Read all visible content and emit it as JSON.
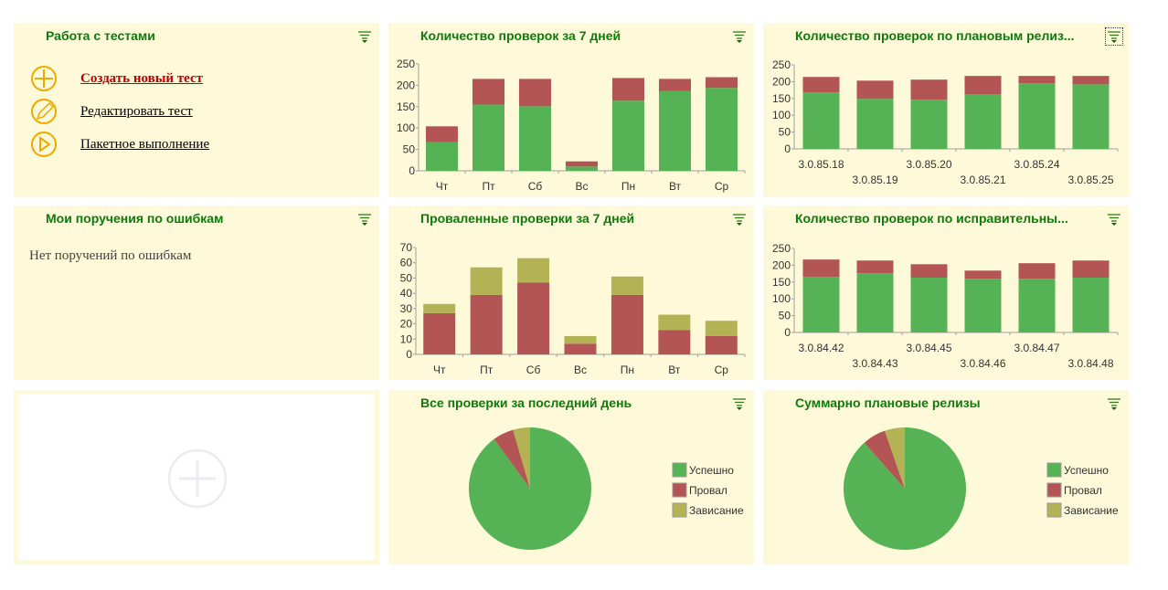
{
  "colors": {
    "success": "#55b355",
    "fail": "#b35555",
    "hang": "#b3b355",
    "title": "#0b7c0b",
    "panel": "#fef9d8"
  },
  "tests_panel": {
    "title": "Работа с тестами",
    "links": [
      {
        "label": "Создать новый тест",
        "icon": "plus-circle-icon"
      },
      {
        "label": "Редактировать тест",
        "icon": "pencil-circle-icon"
      },
      {
        "label": "Пакетное выполнение",
        "icon": "play-circle-icon"
      }
    ]
  },
  "bugs_panel": {
    "title": "Мои поручения по ошибкам",
    "empty_text": "Нет поручений по ошибкам"
  },
  "add_panel": {
    "icon": "add-widget-icon"
  },
  "chart_data": [
    {
      "type": "bar",
      "stacked": true,
      "title": "Количество проверок за 7 дней",
      "ylim": [
        0,
        250
      ],
      "yticks": [
        0,
        50,
        100,
        150,
        200,
        250
      ],
      "categories": [
        "Чт",
        "Пт",
        "Сб",
        "Вс",
        "Пн",
        "Вт",
        "Ср"
      ],
      "series": [
        {
          "color": "#55b355",
          "values": [
            67,
            155,
            151,
            10,
            164,
            187,
            194
          ]
        },
        {
          "color": "#b35555",
          "values": [
            37,
            60,
            64,
            12,
            53,
            28,
            25
          ]
        }
      ]
    },
    {
      "type": "bar",
      "stacked": true,
      "title": "Количество проверок по плановым релиз...",
      "ylim": [
        0,
        250
      ],
      "yticks": [
        0,
        50,
        100,
        150,
        200,
        250
      ],
      "categories": [
        "3.0.85.18",
        "3.0.85.19",
        "3.0.85.20",
        "3.0.85.21",
        "3.0.85.24",
        "3.0.85.25"
      ],
      "series": [
        {
          "color": "#55b355",
          "values": [
            168,
            149,
            146,
            162,
            195,
            192
          ]
        },
        {
          "color": "#b35555",
          "values": [
            46,
            54,
            60,
            55,
            22,
            25
          ]
        }
      ]
    },
    {
      "type": "bar",
      "stacked": true,
      "title": "Проваленные проверки за 7 дней",
      "ylim": [
        0,
        70
      ],
      "yticks": [
        0,
        10,
        20,
        30,
        40,
        50,
        60,
        70
      ],
      "categories": [
        "Чт",
        "Пт",
        "Сб",
        "Вс",
        "Пн",
        "Вт",
        "Ср"
      ],
      "series": [
        {
          "color": "#b35555",
          "values": [
            27,
            39,
            47,
            7,
            39,
            16,
            12
          ]
        },
        {
          "color": "#b3b355",
          "values": [
            6,
            18,
            16,
            5,
            12,
            10,
            10
          ]
        }
      ]
    },
    {
      "type": "bar",
      "stacked": true,
      "title": "Количество проверок по исправительны...",
      "ylim": [
        0,
        250
      ],
      "yticks": [
        0,
        50,
        100,
        150,
        200,
        250
      ],
      "categories": [
        "3.0.84.42",
        "3.0.84.43",
        "3.0.84.45",
        "3.0.84.46",
        "3.0.84.47",
        "3.0.84.48"
      ],
      "series": [
        {
          "color": "#55b355",
          "values": [
            165,
            176,
            163,
            160,
            160,
            163
          ]
        },
        {
          "color": "#b35555",
          "values": [
            52,
            38,
            40,
            24,
            46,
            51
          ]
        }
      ]
    },
    {
      "type": "pie",
      "title": "Все проверки за последний день",
      "slices": [
        {
          "name": "Успешно",
          "value": 90,
          "color": "#55b355"
        },
        {
          "name": "Провал",
          "value": 5.5,
          "color": "#b35555"
        },
        {
          "name": "Зависание",
          "value": 4.5,
          "color": "#b3b355"
        }
      ]
    },
    {
      "type": "pie",
      "title": "Суммарно плановые релизы",
      "slices": [
        {
          "name": "Успешно",
          "value": 88.5,
          "color": "#55b355"
        },
        {
          "name": "Провал",
          "value": 6.2,
          "color": "#b35555"
        },
        {
          "name": "Зависание",
          "value": 5.3,
          "color": "#b3b355"
        }
      ]
    }
  ]
}
